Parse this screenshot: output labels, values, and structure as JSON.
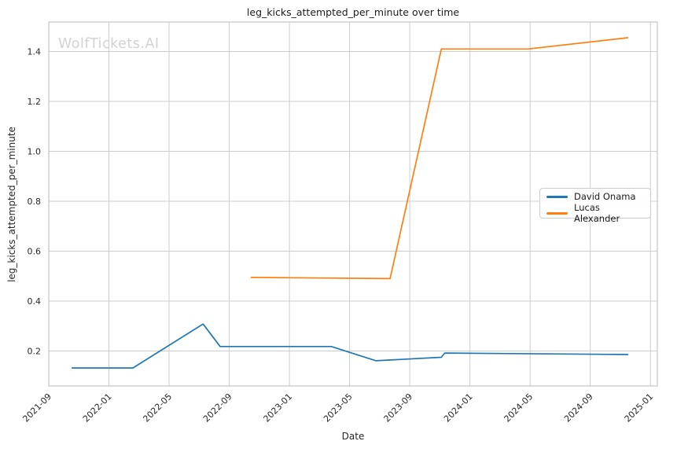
{
  "figure": {
    "watermark": "WolfTickets.AI",
    "background": "#ffffff",
    "colors": {
      "grid": "#cccccc",
      "spine": "#c8c8c8",
      "tick_text": "#262626",
      "title_text": "#1a1a1a",
      "watermark": "#d2d2d2"
    }
  },
  "chart_data": {
    "type": "line",
    "title": "leg_kicks_attempted_per_minute over time",
    "xlabel": "Date",
    "ylabel": "leg_kicks_attempted_per_minute",
    "grid": true,
    "legend_position": "center-right",
    "xlim": [
      "2021-09-01",
      "2025-01-15"
    ],
    "ylim": [
      0.06,
      1.518
    ],
    "x_ticks": [
      "2021-09",
      "2022-01",
      "2022-05",
      "2022-09",
      "2023-01",
      "2023-05",
      "2023-09",
      "2024-01",
      "2024-05",
      "2024-09",
      "2025-01"
    ],
    "y_ticks": [
      "0.2",
      "0.4",
      "0.6",
      "0.8",
      "1.0",
      "1.2",
      "1.4"
    ],
    "series": [
      {
        "name": "David Onama",
        "color": "#1f77b4",
        "points": [
          [
            "2021-10-18",
            0.132
          ],
          [
            "2022-02-19",
            0.132
          ],
          [
            "2022-07-09",
            0.308
          ],
          [
            "2022-08-13",
            0.218
          ],
          [
            "2023-03-25",
            0.218
          ],
          [
            "2023-06-24",
            0.161
          ],
          [
            "2023-11-04",
            0.175
          ],
          [
            "2023-11-11",
            0.192
          ],
          [
            "2024-11-16",
            0.186
          ]
        ]
      },
      {
        "name": "Lucas Alexander",
        "color": "#ff7f0e",
        "points": [
          [
            "2022-10-15",
            0.495
          ],
          [
            "2023-07-22",
            0.49
          ],
          [
            "2023-11-04",
            1.41
          ],
          [
            "2024-04-27",
            1.41
          ],
          [
            "2024-11-16",
            1.455
          ]
        ]
      }
    ]
  },
  "legend": {
    "items": [
      {
        "label": "David Onama",
        "color": "#1f77b4"
      },
      {
        "label": "Lucas Alexander",
        "color": "#ff7f0e"
      }
    ]
  }
}
